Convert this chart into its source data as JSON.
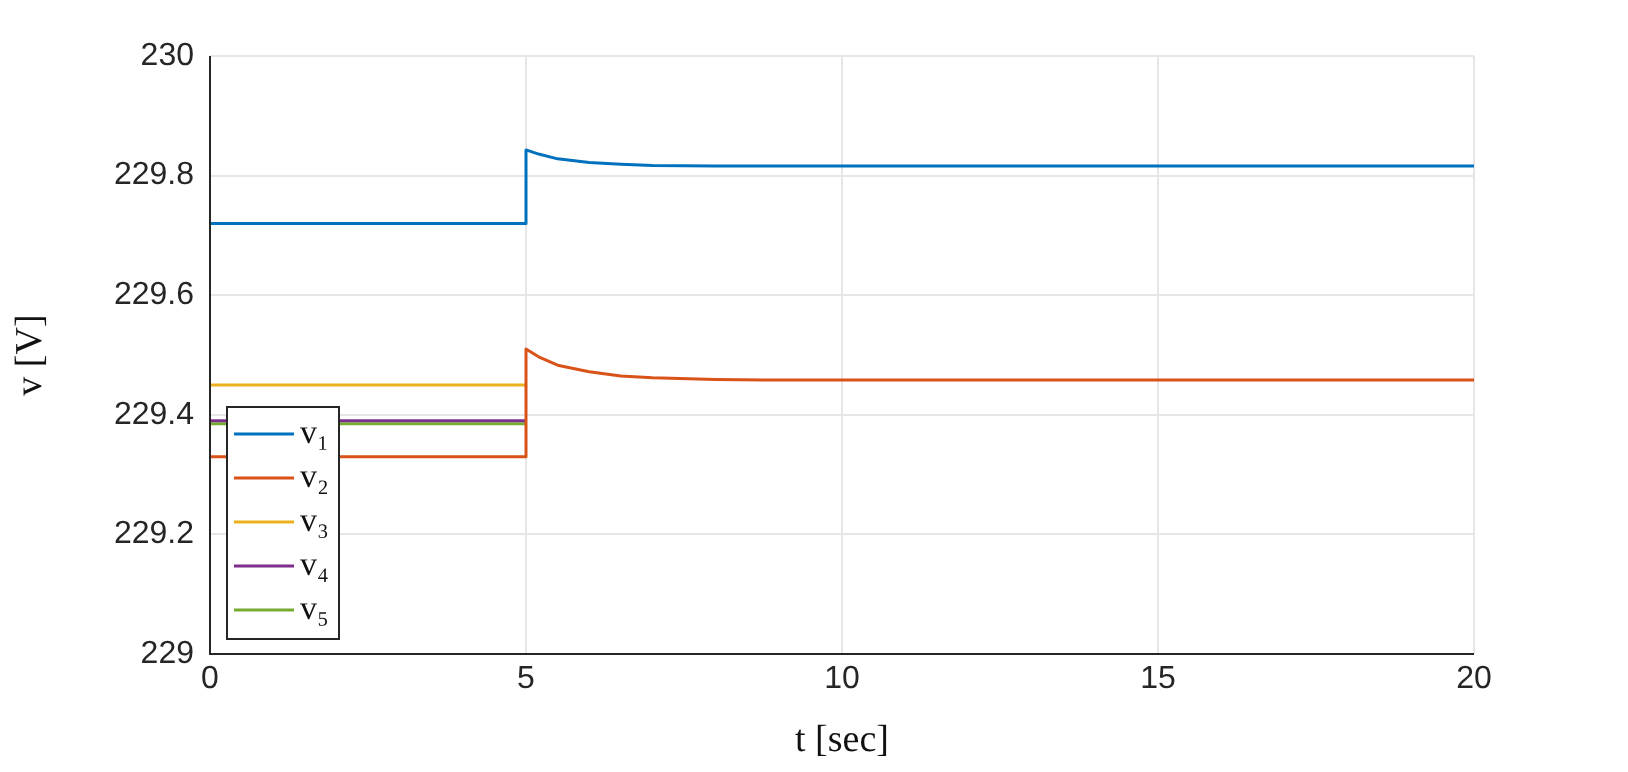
{
  "chart_data": {
    "type": "line",
    "xlabel": "t [sec]",
    "ylabel": "v [V]",
    "xlim": [
      0,
      20
    ],
    "xticks": [
      0,
      5,
      10,
      15,
      20
    ],
    "ylim": [
      229,
      230
    ],
    "yticks": [
      229,
      229.2,
      229.4,
      229.6,
      229.8,
      230
    ],
    "grid": true,
    "legend": "bottom left",
    "marker": "none",
    "line_style": "solid",
    "series": [
      {
        "name": "v₁",
        "color": "#0072bd",
        "x": [
          0,
          5,
          5,
          5.2,
          5.5,
          6,
          6.5,
          7,
          8,
          20
        ],
        "values": [
          229.72,
          229.72,
          229.843,
          229.836,
          229.828,
          229.822,
          229.819,
          229.817,
          229.816,
          229.816
        ]
      },
      {
        "name": "v₂",
        "color": "#d95319",
        "x": [
          0,
          5,
          5,
          5.2,
          5.5,
          6,
          6.5,
          7,
          8,
          9,
          20
        ],
        "values": [
          229.33,
          229.33,
          229.51,
          229.497,
          229.483,
          229.472,
          229.465,
          229.462,
          229.459,
          229.458,
          229.458
        ]
      },
      {
        "name": "v₃",
        "color": "#edb120",
        "x": [
          0,
          5
        ],
        "values": [
          229.45,
          229.45
        ]
      },
      {
        "name": "v₄",
        "color": "#7e2f8e",
        "x": [
          0,
          5
        ],
        "values": [
          229.39,
          229.39
        ]
      },
      {
        "name": "v₅",
        "color": "#77ac30",
        "x": [
          0,
          5
        ],
        "values": [
          229.385,
          229.385
        ]
      }
    ]
  }
}
